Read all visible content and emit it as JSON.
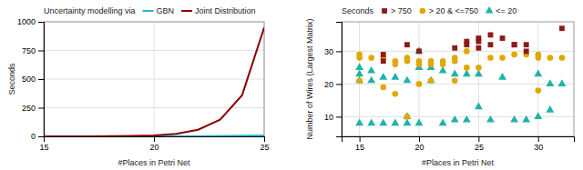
{
  "chart_data": [
    {
      "type": "line",
      "title": "Uncertainty modelling via",
      "xlabel": "#Places in Petri Net",
      "ylabel": "Seconds",
      "xlim": [
        15,
        25
      ],
      "ylim": [
        0,
        1000
      ],
      "xticks": [
        15,
        20,
        25
      ],
      "yticks": [
        0,
        250,
        500,
        750,
        1000
      ],
      "grid": true,
      "legend": "top",
      "x": [
        15,
        16,
        17,
        18,
        19,
        20,
        21,
        22,
        23,
        24,
        25
      ],
      "series": [
        {
          "name": "GBN",
          "color": "#29B6C5",
          "values": [
            0.3,
            0.3,
            0.3,
            0.4,
            0.5,
            0.8,
            1.2,
            2.0,
            3.5,
            5.0,
            7.0
          ]
        },
        {
          "name": "Joint Distribution",
          "color": "#8B0000",
          "values": [
            0.3,
            0.5,
            0.9,
            1.8,
            4.0,
            8.5,
            22,
            58,
            145,
            360,
            950
          ]
        }
      ]
    },
    {
      "type": "scatter",
      "title": "Seconds",
      "xlabel": "#Places in Petri Net",
      "ylabel": "Number of Wires (Largest Matrix)",
      "xlim": [
        13.5,
        33
      ],
      "ylim": [
        4,
        39
      ],
      "xticks": [
        15,
        20,
        25,
        30
      ],
      "yticks": [
        10,
        20,
        30
      ],
      "grid": true,
      "legend": "top",
      "series": [
        {
          "name": "> 750",
          "color": "#8B1A1A",
          "marker": "square",
          "x": [
            17,
            17,
            19,
            20,
            23,
            24,
            24,
            25,
            25,
            25,
            26,
            26,
            27,
            28,
            28,
            29,
            29,
            32
          ],
          "values": [
            29,
            27,
            32,
            30,
            31,
            33,
            32,
            34,
            33,
            31,
            35,
            32,
            34,
            32,
            32,
            32,
            30,
            37
          ]
        },
        {
          "name": "> 20 & <=750",
          "color": "#E0A800",
          "marker": "circle",
          "x": [
            15,
            15,
            15,
            16,
            17,
            17,
            18,
            18,
            18,
            19,
            19,
            19,
            20,
            20,
            20,
            21,
            21,
            21,
            22,
            22,
            23,
            23,
            23,
            24,
            24,
            25,
            26,
            27,
            28,
            29,
            30,
            30,
            30,
            31,
            32
          ],
          "values": [
            29,
            28,
            21,
            28,
            28,
            19,
            27,
            26,
            17,
            28,
            27,
            10,
            27,
            26,
            20,
            27,
            26,
            21,
            27,
            26,
            28,
            27,
            21,
            30,
            25,
            25,
            28,
            28,
            29,
            29,
            29,
            28,
            18,
            28,
            28
          ]
        },
        {
          "name": "<= 20",
          "color": "#20B2AA",
          "marker": "triangle",
          "x": [
            15,
            15,
            15,
            15,
            16,
            16,
            16,
            17,
            17,
            18,
            18,
            19,
            19,
            19,
            20,
            20,
            20,
            21,
            21,
            22,
            22,
            23,
            23,
            24,
            24,
            25,
            25,
            26,
            27,
            28,
            29,
            30,
            30,
            31,
            31,
            32
          ],
          "values": [
            25,
            23,
            21,
            8,
            24,
            21,
            8,
            22,
            8,
            22,
            8,
            21,
            10,
            8,
            30,
            25,
            8,
            25,
            21,
            24,
            8,
            23,
            9,
            23,
            9,
            23,
            13,
            9,
            22,
            9,
            9,
            23,
            10,
            20,
            12,
            20
          ]
        }
      ]
    }
  ]
}
